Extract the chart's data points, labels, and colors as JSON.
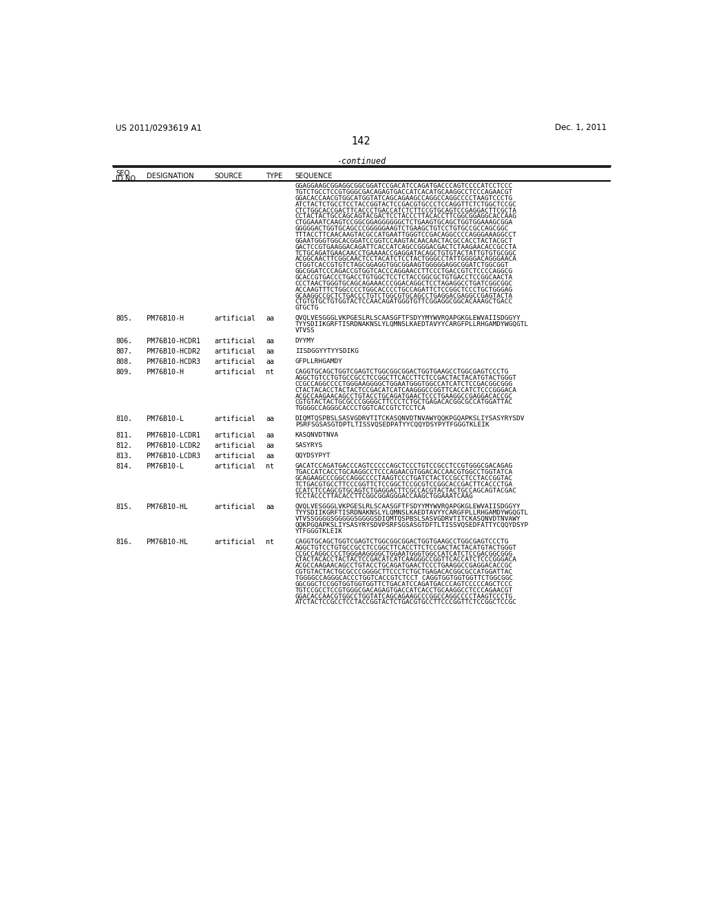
{
  "header_left": "US 2011/0293619 A1",
  "header_right": "Dec. 1, 2011",
  "page_number": "142",
  "continued_text": "-continued",
  "background_color": "#ffffff",
  "text_color": "#000000",
  "entries": [
    {
      "seq_id": "",
      "designation": "",
      "source": "",
      "type": "",
      "sequence_lines": [
        "GGAGGAAGCGGAGGCGGCGGATCCGACATCCAGATGACCCAGTCCCCATCCTCCC",
        "TGTCTGCCTCCGTGGGCGACAGAGTGACCATCACATGCAAGGCCTCCCAGAACGT",
        "GGACACCAACGTGGCATGGTATCAGCAGAAGCCAGGCCAGGCCCCTAAGTCCCTG",
        "ATCTACTCTGCCTCCTACCGGTACTCCGACGTGCCCTCCAGGTTCTCTGGCTCCGC",
        "CTCTGGCACCGACTTCACCCTGACCATCTCTTCCGTGCAGTCCGAGGACTTCGCTA",
        "CCTACTACTGCCAGCAGTACGACTCCTACCCTTACACCTTCGGCGGAGGCACCAAG",
        "CTGGAAATCAAGTCCGGCGGAGGGGGGCTCTGAAGTGCAGCTGGTGGAAAGCGGA",
        "GGGGGACTGGTGCAGCCCGGGGGAAGTCTGAAGCTGTCCTGTGCCGCCAGCGGC",
        "TTTACCTTCAACAAGTACGCCATGAATTGGGTCCGACAGGCCCCAGGGAAAGGCCT",
        "GGAATGGGTGGCACGGATCCGGTCCAAGTACAACAACTACGCCACCTACTACGCT",
        "GACTCCGTGAAGGACAGATTCACCATCAGCCGGGACGACTCTAAGAACACCGCCTA",
        "TCTGCAGATGAACAACCTGAAAACCGAGGATACAGCTGTGTACTATTGTGTGCGGC",
        "ACGGCAACTTCGGCAACTCCTACATCTCCTACTGGGCCTATTGGGGACAGGGAACA",
        "CTGGTCACCGTGTCTAGCGGAGGTGGCGGAAGTGGGGGAGGCGGATCTGGCGGT",
        "GGCGGATCCCAGACCGTGGTCACCCAGGAACCTTCCCTGACCGTCTCCCCAGGCG",
        "GCACCGTGACCCTGACCTGTGGCTCCTCTACCGGCGCTGTGACCTCCGGCAACTA",
        "CCCTAACTGGGTGCAGCAGAAACCCGGACAGGCTCCTAGAGGCCTGATCGGCGGC",
        "ACCAAGTTTCTGGCCCCTGGCACCCCTGCCAGATTCTCCGGCTCCCTGCTGGGAG",
        "GCAAGGCCGCTCTGACCCTGTCTGGCGTGCAGCCTGAGGACGAGGCCGAGTACTA",
        "CTGTGTGCTGTGGTACTCCAACAGATGGGTGTTCGGAGGCGGCACAAAGCTGACC",
        "GTGCTG"
      ]
    },
    {
      "seq_id": "805.",
      "designation": "PM76B10-H",
      "source": "artificial",
      "type": "aa",
      "sequence_lines": [
        "QVQLVESGGGLVKPGESLRLSCAASGFTFSDYYMYWVRQAPGKGLEWVAIISDGGYY",
        "TYYSDIIKGRFTISRDNAKNSLYLQMNSLKAEDTAVYYCARGFPLLRHGAMDYWGQGTL",
        "VTVSS"
      ]
    },
    {
      "seq_id": "806.",
      "designation": "PM76B10-HCDR1",
      "source": "artificial",
      "type": "aa",
      "sequence_lines": [
        "DYYMY"
      ]
    },
    {
      "seq_id": "807.",
      "designation": "PM76B10-HCDR2",
      "source": "artificial",
      "type": "aa",
      "sequence_lines": [
        "IISDGGYYTYYSDIKG"
      ]
    },
    {
      "seq_id": "808.",
      "designation": "PM76B10-HCDR3",
      "source": "artificial",
      "type": "aa",
      "sequence_lines": [
        "GFPLLRHGAMDY"
      ]
    },
    {
      "seq_id": "809.",
      "designation": "PM76B10-H",
      "source": "artificial",
      "type": "nt",
      "sequence_lines": [
        "CAGGTGCAGCTGGTCGAGTCTGGCGGCGGACTGGTGAAGCCTGGCGAGTCCCTG",
        "AGGCTGTCCTGTGCCGCCTCCGGCTTCACCTTCTCCGACTACTACATGTACTGGGT",
        "CCGCCAGGCCCCTGGGAAGGGGCTGGAATGGGTGGCCATCATCTCCGACGGCGGG",
        "CTACTACACCTACTACTCCGACATCATCAAGGGCCGGTTCACCATCTCCCGGGACA",
        "ACGCCAAGAACAGCCTGTACCTGCAGATGAACTCCCTGAAGGCCGAGGACACCGC",
        "CGTGTACTACTGCGCCCGGGGCTTCCCTCTGCTGAGACACGGCGCCATGGATTAC",
        "TGGGGCCAGGGCACCCTGGTCACCGTCTCCTCA"
      ]
    },
    {
      "seq_id": "810.",
      "designation": "PM76B10-L",
      "source": "artificial",
      "type": "aa",
      "sequence_lines": [
        "DIQMTQSPBSLSASVGDRVTITCKASQNVDTNVAWYQQKPGQAPKSLIYSASYRYSDV",
        "PSRFSGSASGTDPTLTISSVQSEDPATYYCQQYDSYPYTFGGGTKLЕIK"
      ]
    },
    {
      "seq_id": "811.",
      "designation": "PM76B10-LCDR1",
      "source": "artificial",
      "type": "aa",
      "sequence_lines": [
        "KASQNVDTNVA"
      ]
    },
    {
      "seq_id": "812.",
      "designation": "PM76B10-LCDR2",
      "source": "artificial",
      "type": "aa",
      "sequence_lines": [
        "SASYRYS"
      ]
    },
    {
      "seq_id": "813.",
      "designation": "PM76B10-LCDR3",
      "source": "artificial",
      "type": "aa",
      "sequence_lines": [
        "QQYDSYPYT"
      ]
    },
    {
      "seq_id": "814.",
      "designation": "PM76B10-L",
      "source": "artificial",
      "type": "nt",
      "sequence_lines": [
        "GACATCCAGATGACCCAGTCCCCCAGCTCCCTGTCCGCCTCCGTGGGCGACAGAG",
        "TGACCATCACCTGCAAGGCCTCCCAGAACGTGGACACCAACGTGGCCTGGTATCA",
        "GCAGAAGCCCGGCCAGGCCCCTAAGTCCCTGATCTACTCCGCCTCCTACCGGTAC",
        "TCTGACGTGCCTTCCCGGTTCTCCGGCTCCGCGTCCGGCACCGACTTCACCCTGA",
        "CCATCTCCAGCGTGCAGTCTGAGGACTTCGCCACGTACTACTGCCAGCAGTACGAC",
        "TCCTACCCTTACACCTTCGGCGGAGGGACCAAGCTGGAAATCAAG"
      ]
    },
    {
      "seq_id": "815.",
      "designation": "PM76B10-HL",
      "source": "artificial",
      "type": "aa",
      "sequence_lines": [
        "QVQLVESGGGLVKPGESLRLSCAASGFTFSDYYMYWVRQAPGKGLEWVAIISDGGYY",
        "TYYSDIIKGRFTISRDNAKNSLYLQMNSLKAEDTAVYYCARGFPLLRHGAMDYWGQGTL",
        "VTVSSGGGGSGGGGGSGGGGSDIQMTQSPBSLSASVGDRVTITCKASQNVDTNVAWY",
        "QQKPGQAPKSLIYSASYRYSDVPSRFSGSASGTDFTLTISSVQSEDFATTYCQQYDSYP",
        "YTFGGGTKLЕIK"
      ]
    },
    {
      "seq_id": "816.",
      "designation": "PM76B10-HL",
      "source": "artificial",
      "type": "nt",
      "sequence_lines": [
        "CAGGTGCAGCTGGTCGAGTCTGGCGGCGGACTGGTGAAGCCTGGCGAGTCCCTG",
        "AGGCTGTCCTGTGCCGCCTCCGGCTTCACCTTCTCCGACTACTACATGTACTGGGT",
        "CCGCCAGGCCCCTGGGAAGGGGCTGGAATGGGTGGCCATCATCTCCGACGGCGGG",
        "CTACTACACCTACTACTCCGACATCATCAAGGGCCGGTTCACCATCTCCCGGGACA",
        "ACGCCAAGAACAGCCTGTACCTGCAGATGAACTCCCTGAAGGCCGAGGACACCGC",
        "CGTGTACTACTGCGCCCGGGGCTTCCCTCTGCTGAGACACGGCGCCATGGATTAC",
        "TGGGGCCAGGGCACCCTGGTCACCGTCTCCT CAGGTGGTGGTGGTTCTGGCGGC",
        "GGCGGCTCCGGTGGTGGTGGTTCTGACATCCAGATGACCCAGTCCCCCAGCTCCC",
        "TGTCCGCCTCCGTGGGCGACAGAGTGACCATCACCTGCAAGGCCTCCCAGAACGT",
        "GGACACCAACGTGGCCTGGTATCAGCAGAAGCCCGGCCAGGCCCCTAAGTCCCTG",
        "ATCTACTCCGCCTCCTACCGGTACTCTGACGTGCCTTCCCGGTTCTCCGGCTCCGC"
      ]
    }
  ]
}
